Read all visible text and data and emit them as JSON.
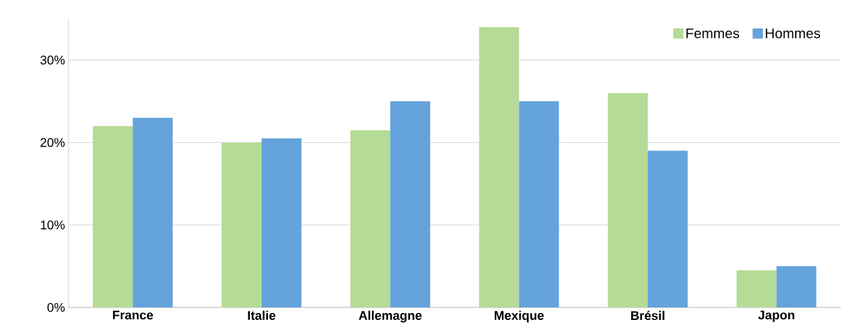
{
  "chart_data": {
    "type": "bar",
    "categories": [
      "France",
      "Italie",
      "Allemagne",
      "Mexique",
      "Brésil",
      "Japon"
    ],
    "series": [
      {
        "name": "Femmes",
        "color": "#b5db96",
        "values": [
          22,
          20,
          21.5,
          34,
          26,
          4.5
        ]
      },
      {
        "name": "Hommes",
        "color": "#64a3dc",
        "values": [
          23,
          20.5,
          25,
          25,
          19,
          5
        ]
      }
    ],
    "ylim": [
      0,
      35
    ],
    "yticks": [
      {
        "value": 0,
        "label": "0%"
      },
      {
        "value": 10,
        "label": "10%"
      },
      {
        "value": 20,
        "label": "20%"
      },
      {
        "value": 30,
        "label": "30%"
      }
    ],
    "grid": "y",
    "legend": "top right"
  }
}
